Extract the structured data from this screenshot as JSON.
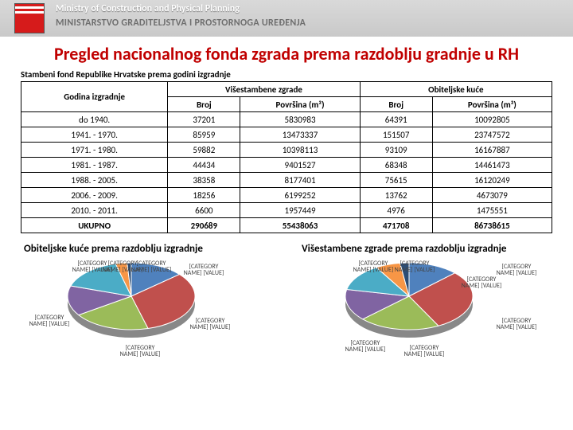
{
  "header": {
    "ministry_en": "Ministry of Construction and Physical Planning",
    "ministry_hr": "MINISTARSTVO GRADITELJSTVA I PROSTORNOGA UREĐENJA"
  },
  "title": "Pregled nacionalnog fonda zgrada prema razdoblju gradnje u RH",
  "table": {
    "caption": "Stambeni fond Republike Hrvatske prema godini izgradnje",
    "col_groups": [
      "Godina izgradnje",
      "Višestambene zgrade",
      "Obiteljske kuće"
    ],
    "sub_cols": [
      "Broj",
      "Površina (m²)",
      "Broj",
      "Površina (m²)"
    ],
    "rows": [
      {
        "period": "do 1940.",
        "v": [
          37201,
          5830983,
          64391,
          10092805
        ]
      },
      {
        "period": "1941. - 1970.",
        "v": [
          85959,
          13473337,
          151507,
          23747572
        ]
      },
      {
        "period": "1971. - 1980.",
        "v": [
          59882,
          10398113,
          93109,
          16167887
        ]
      },
      {
        "period": "1981. - 1987.",
        "v": [
          44434,
          9401527,
          68348,
          14461473
        ]
      },
      {
        "period": "1988. - 2005.",
        "v": [
          38358,
          8177401,
          75615,
          16120249
        ]
      },
      {
        "period": "2006. - 2009.",
        "v": [
          18256,
          6199252,
          13762,
          4673079
        ]
      },
      {
        "period": "2010. - 2011.",
        "v": [
          6600,
          1957449,
          4976,
          1475551
        ]
      }
    ],
    "total_label": "UKUPNO",
    "totals": [
      290689,
      55438063,
      471708,
      86738615
    ]
  },
  "charts": {
    "left": {
      "title": "Obiteljske kuće prema razdoblju izgradnje",
      "type": "pie",
      "placeholder_label": "[CATEGORY NAME] [VALUE]",
      "slices": [
        {
          "value": 64391,
          "color": "#4f81bd"
        },
        {
          "value": 151507,
          "color": "#c0504d"
        },
        {
          "value": 93109,
          "color": "#9bbb59"
        },
        {
          "value": 68348,
          "color": "#8064a2"
        },
        {
          "value": 75615,
          "color": "#4bacc6"
        },
        {
          "value": 13762,
          "color": "#f79646"
        },
        {
          "value": 4976,
          "color": "#2c4d75"
        }
      ]
    },
    "right": {
      "title": "Višestambene zgrade prema razdoblju izgradnje",
      "type": "pie",
      "placeholder_label": "[CATEGORY NAME] [VALUE]",
      "slices": [
        {
          "value": 37201,
          "color": "#4f81bd"
        },
        {
          "value": 85959,
          "color": "#c0504d"
        },
        {
          "value": 59882,
          "color": "#9bbb59"
        },
        {
          "value": 44434,
          "color": "#8064a2"
        },
        {
          "value": 38358,
          "color": "#4bacc6"
        },
        {
          "value": 18256,
          "color": "#f79646"
        },
        {
          "value": 6600,
          "color": "#2c4d75"
        }
      ]
    }
  }
}
